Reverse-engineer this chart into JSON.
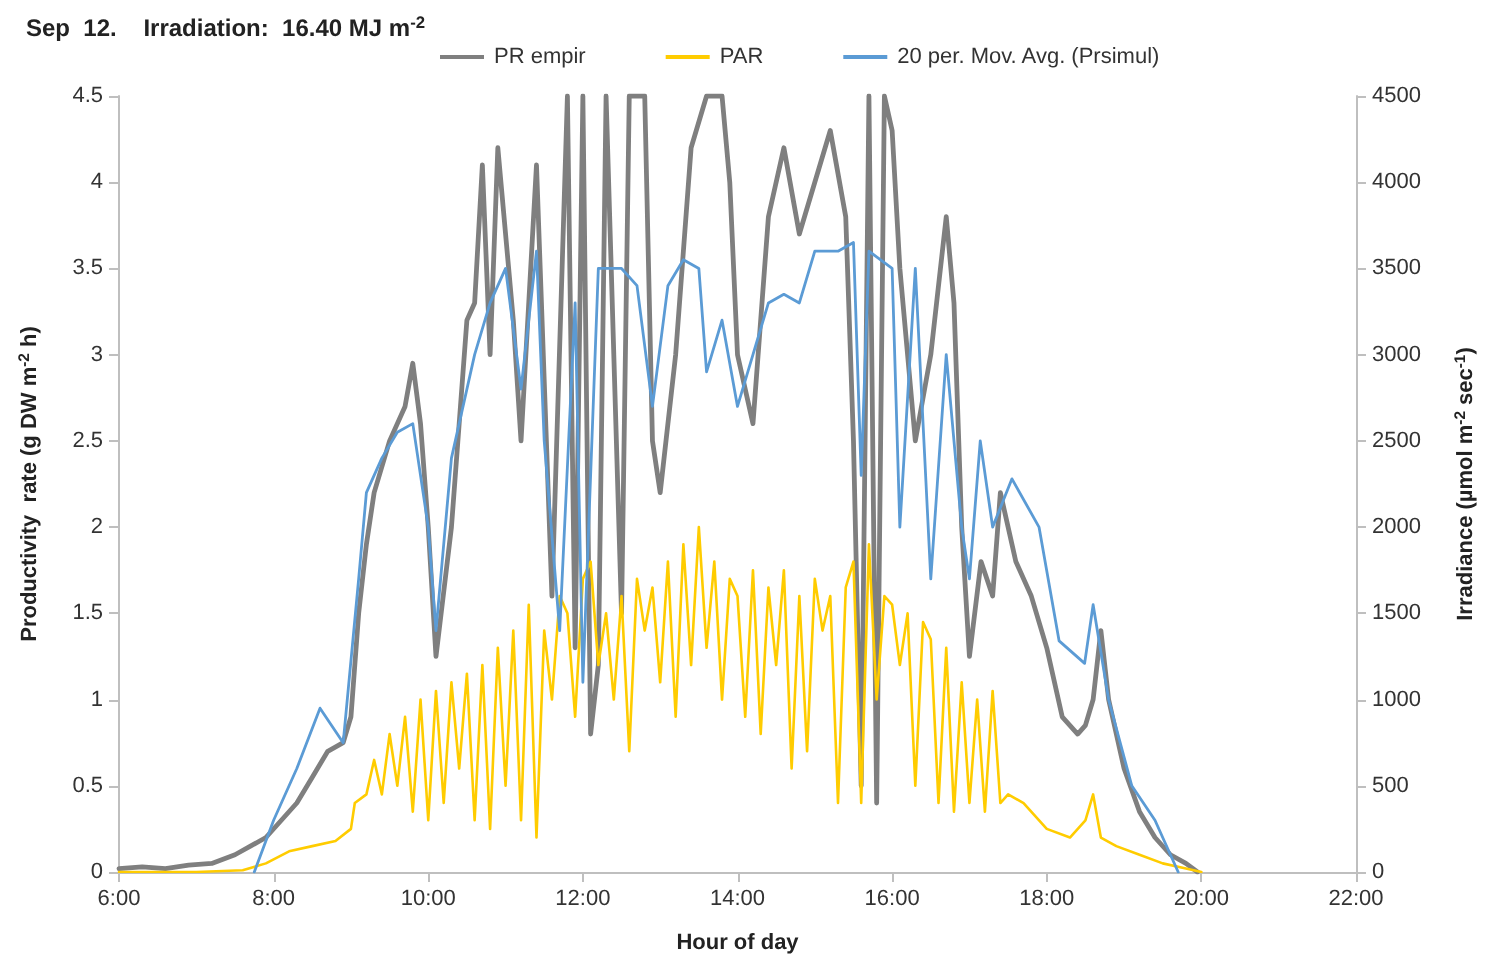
{
  "chart_data": {
    "type": "line",
    "title": "Sep  12.    Irradiation:  16.40 MJ m$^{-2}$",
    "xlabel": "Hour of day",
    "ylabel": "Productivity  rate (g DW m$^{-2}$ h)",
    "y2label": "Irradiance (µmol m$^{-2}$ sec$^{-1}$)",
    "xlim": [
      6,
      22
    ],
    "xticks": [
      {
        "value": 6,
        "label": "6:00"
      },
      {
        "value": 8,
        "label": "8:00"
      },
      {
        "value": 10,
        "label": "10:00"
      },
      {
        "value": 12,
        "label": "12:00"
      },
      {
        "value": 14,
        "label": "14:00"
      },
      {
        "value": 16,
        "label": "16:00"
      },
      {
        "value": 18,
        "label": "18:00"
      },
      {
        "value": 20,
        "label": "20:00"
      },
      {
        "value": 22,
        "label": "22:00"
      }
    ],
    "ylim": [
      0,
      4.5
    ],
    "yticks": [
      0,
      0.5,
      1,
      1.5,
      2,
      2.5,
      3,
      3.5,
      4,
      4.5
    ],
    "y2lim": [
      0,
      4500
    ],
    "y2ticks": [
      0,
      500,
      1000,
      1500,
      2000,
      2500,
      3000,
      3500,
      4000,
      4500
    ],
    "grid": false,
    "legend": "top",
    "marker": "none",
    "line_style": "solid",
    "series": [
      {
        "name": "PR empir",
        "color": "#7f7f7f",
        "x": [
          6,
          6.3,
          6.6,
          6.9,
          7.2,
          7.5,
          7.7,
          7.9,
          8.1,
          8.3,
          8.5,
          8.7,
          8.9,
          9.0,
          9.1,
          9.2,
          9.3,
          9.5,
          9.7,
          9.8,
          9.9,
          10.0,
          10.1,
          10.3,
          10.5,
          10.6,
          10.7,
          10.8,
          10.9,
          11.1,
          11.2,
          11.4,
          11.6,
          11.8,
          11.9,
          12.0,
          12.1,
          12.2,
          12.3,
          12.5,
          12.6,
          12.8,
          12.9,
          13.0,
          13.2,
          13.4,
          13.6,
          13.8,
          13.9,
          14.0,
          14.2,
          14.4,
          14.6,
          14.8,
          15.0,
          15.2,
          15.4,
          15.5,
          15.6,
          15.7,
          15.8,
          15.9,
          16.0,
          16.1,
          16.3,
          16.5,
          16.7,
          16.8,
          16.9,
          17.0,
          17.15,
          17.3,
          17.4,
          17.6,
          17.8,
          18.0,
          18.2,
          18.4,
          18.5,
          18.6,
          18.7,
          18.8,
          19.0,
          19.2,
          19.4,
          19.6,
          19.8,
          19.95
        ],
        "values": [
          0.02,
          0.03,
          0.02,
          0.04,
          0.05,
          0.1,
          0.15,
          0.2,
          0.3,
          0.4,
          0.55,
          0.7,
          0.75,
          0.9,
          1.5,
          1.9,
          2.2,
          2.5,
          2.7,
          2.95,
          2.6,
          2.0,
          1.25,
          2.0,
          3.2,
          3.3,
          4.1,
          3.0,
          4.2,
          3.2,
          2.5,
          4.1,
          1.6,
          4.5,
          1.3,
          4.5,
          0.8,
          1.2,
          4.5,
          1.5,
          4.5,
          4.5,
          2.5,
          2.2,
          3.0,
          4.2,
          4.5,
          4.5,
          4.0,
          3.0,
          2.6,
          3.8,
          4.2,
          3.7,
          4.0,
          4.3,
          3.8,
          2.5,
          0.5,
          4.5,
          0.4,
          4.5,
          4.3,
          3.5,
          2.5,
          3.0,
          3.8,
          3.3,
          2.0,
          1.25,
          1.8,
          1.6,
          2.2,
          1.8,
          1.6,
          1.3,
          0.9,
          0.8,
          0.85,
          1.0,
          1.4,
          1.0,
          0.6,
          0.35,
          0.2,
          0.1,
          0.05,
          0
        ]
      },
      {
        "name": "PAR",
        "color": "#ffcc00",
        "axis": "y2",
        "x": [
          6,
          7,
          7.6,
          7.9,
          8.2,
          8.5,
          8.8,
          9.0,
          9.05,
          9.2,
          9.3,
          9.4,
          9.5,
          9.6,
          9.7,
          9.8,
          9.9,
          10.0,
          10.1,
          10.2,
          10.3,
          10.4,
          10.5,
          10.6,
          10.7,
          10.8,
          10.9,
          11.0,
          11.1,
          11.2,
          11.3,
          11.4,
          11.5,
          11.6,
          11.7,
          11.8,
          11.9,
          12.0,
          12.1,
          12.2,
          12.3,
          12.4,
          12.5,
          12.6,
          12.7,
          12.8,
          12.9,
          13.0,
          13.1,
          13.2,
          13.3,
          13.4,
          13.5,
          13.6,
          13.7,
          13.8,
          13.9,
          14.0,
          14.1,
          14.2,
          14.3,
          14.4,
          14.5,
          14.6,
          14.7,
          14.8,
          14.9,
          15.0,
          15.1,
          15.2,
          15.3,
          15.4,
          15.5,
          15.6,
          15.7,
          15.8,
          15.9,
          16.0,
          16.1,
          16.2,
          16.3,
          16.4,
          16.5,
          16.6,
          16.7,
          16.8,
          16.9,
          17.0,
          17.1,
          17.2,
          17.3,
          17.4,
          17.5,
          17.7,
          18.0,
          18.3,
          18.5,
          18.6,
          18.7,
          18.9,
          19.2,
          19.5,
          19.8,
          20.0
        ],
        "values": [
          0,
          0,
          10,
          50,
          120,
          150,
          180,
          250,
          400,
          450,
          650,
          450,
          800,
          500,
          900,
          350,
          1000,
          300,
          1050,
          400,
          1100,
          600,
          1150,
          300,
          1200,
          250,
          1300,
          500,
          1400,
          300,
          1550,
          200,
          1400,
          1000,
          1600,
          1500,
          900,
          1700,
          1800,
          1200,
          1500,
          1000,
          1600,
          700,
          1700,
          1400,
          1650,
          1100,
          1800,
          900,
          1900,
          1200,
          2000,
          1300,
          1800,
          1000,
          1700,
          1600,
          900,
          1750,
          800,
          1650,
          1200,
          1750,
          600,
          1600,
          700,
          1700,
          1400,
          1600,
          400,
          1650,
          1800,
          400,
          1900,
          1000,
          1600,
          1550,
          1200,
          1500,
          500,
          1450,
          1350,
          400,
          1300,
          350,
          1100,
          400,
          1000,
          350,
          1050,
          400,
          450,
          400,
          250,
          200,
          300,
          450,
          200,
          150,
          100,
          50,
          20,
          0
        ]
      },
      {
        "name": "20 per. Mov. Avg. (Prsimul)",
        "color": "#5b9bd5",
        "x": [
          7.75,
          8.0,
          8.3,
          8.6,
          8.9,
          9.1,
          9.2,
          9.4,
          9.6,
          9.8,
          10.0,
          10.1,
          10.3,
          10.6,
          10.8,
          11.0,
          11.2,
          11.4,
          11.5,
          11.7,
          11.9,
          12.0,
          12.2,
          12.5,
          12.7,
          12.9,
          13.1,
          13.3,
          13.5,
          13.6,
          13.8,
          14.0,
          14.2,
          14.4,
          14.6,
          14.8,
          15.0,
          15.3,
          15.5,
          15.6,
          15.7,
          16.0,
          16.1,
          16.3,
          16.5,
          16.7,
          16.9,
          17.0,
          17.14,
          17.3,
          17.55,
          17.9,
          18.16,
          18.49,
          18.6,
          18.8,
          19.1,
          19.4,
          19.6,
          19.7
        ],
        "values": [
          0,
          0.3,
          0.6,
          0.95,
          0.75,
          1.7,
          2.2,
          2.4,
          2.55,
          2.6,
          2.0,
          1.4,
          2.4,
          3.0,
          3.3,
          3.5,
          2.8,
          3.6,
          2.5,
          1.4,
          3.3,
          1.1,
          3.5,
          3.5,
          3.4,
          2.7,
          3.4,
          3.55,
          3.5,
          2.9,
          3.2,
          2.7,
          3.0,
          3.3,
          3.35,
          3.3,
          3.6,
          3.6,
          3.65,
          2.3,
          3.6,
          3.5,
          2.0,
          3.5,
          1.7,
          3.0,
          2.0,
          1.7,
          2.5,
          2.0,
          2.28,
          2.0,
          1.34,
          1.21,
          1.55,
          1.0,
          0.5,
          0.3,
          0.1,
          0
        ]
      }
    ]
  }
}
